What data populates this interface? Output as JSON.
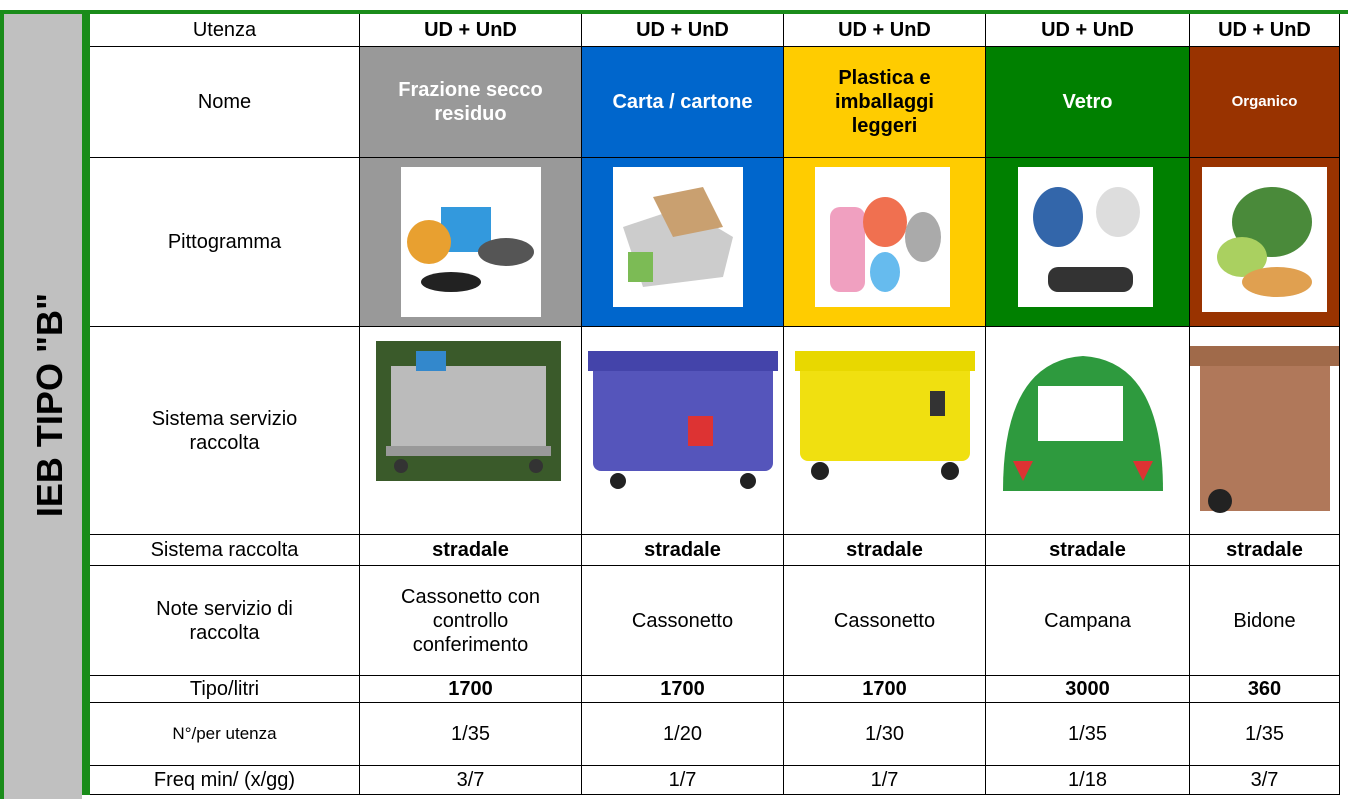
{
  "side_label": "IEB TIPO \"B\"",
  "table": {
    "row_labels": [
      "Utenza",
      "Nome",
      "Pittogramma",
      "Sistema servizio raccolta",
      "Sistema raccolta",
      "Note servizio di raccolta",
      "Tipo/litri",
      "N°/per utenza",
      "Freq min/ (x/gg)"
    ],
    "columns": [
      {
        "color": "#999999",
        "utenza": "UD + UnD",
        "nome": "Frazione secco residuo",
        "sistema_raccolta": "stradale",
        "note": "Cassonetto con controllo conferimento",
        "tipo_litri": 1700,
        "n_per_utenza": "1/35",
        "freq": "3/7"
      },
      {
        "color": "#0066cc",
        "utenza": "UD + UnD",
        "nome": "Carta / cartone",
        "sistema_raccolta": "stradale",
        "note": "Cassonetto",
        "tipo_litri": 1700,
        "n_per_utenza": "1/20",
        "freq": "1/7"
      },
      {
        "color": "#ffcc00",
        "utenza": "UD + UnD",
        "nome": "Plastica e imballaggi leggeri",
        "sistema_raccolta": "stradale",
        "note": "Cassonetto",
        "tipo_litri": 1700,
        "n_per_utenza": "1/30",
        "freq": "1/7"
      },
      {
        "color": "#008000",
        "utenza": "UD + UnD",
        "nome": "Vetro",
        "sistema_raccolta": "stradale",
        "note": "Campana",
        "tipo_litri": 3000,
        "n_per_utenza": "1/35",
        "freq": "1/18"
      },
      {
        "color": "#993300",
        "utenza": "UD + UnD",
        "nome": "Organico",
        "sistema_raccolta": "stradale",
        "note": "Bidone",
        "tipo_litri": 360,
        "n_per_utenza": "1/35",
        "freq": "3/7"
      }
    ]
  }
}
